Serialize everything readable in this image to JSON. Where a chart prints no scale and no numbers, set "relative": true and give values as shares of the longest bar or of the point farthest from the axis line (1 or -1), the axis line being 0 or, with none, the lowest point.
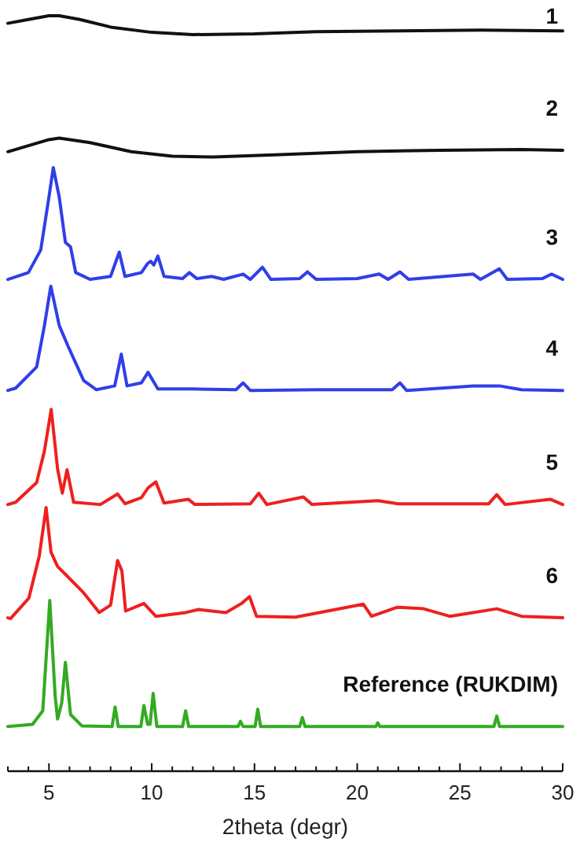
{
  "chart_data": {
    "type": "line",
    "relative": true,
    "xlabel": "2theta (degr)",
    "xlim": [
      3,
      30
    ],
    "xticks": [
      {
        "value": 3,
        "label": null
      },
      {
        "value": 4,
        "label": null
      },
      5,
      {
        "value": 6,
        "label": null
      },
      {
        "value": 7,
        "label": null
      },
      {
        "value": 8,
        "label": null
      },
      {
        "value": 9,
        "label": null
      },
      10,
      {
        "value": 11,
        "label": null
      },
      {
        "value": 12,
        "label": null
      },
      {
        "value": 13,
        "label": null
      },
      {
        "value": 14,
        "label": null
      },
      15,
      {
        "value": 16,
        "label": null
      },
      {
        "value": 17,
        "label": null
      },
      {
        "value": 18,
        "label": null
      },
      {
        "value": 19,
        "label": null
      },
      20,
      {
        "value": 21,
        "label": null
      },
      {
        "value": 22,
        "label": null
      },
      {
        "value": 23,
        "label": null
      },
      {
        "value": 24,
        "label": null
      },
      25,
      {
        "value": 26,
        "label": null
      },
      {
        "value": 27,
        "label": null
      },
      {
        "value": 28,
        "label": null
      },
      {
        "value": 29,
        "label": null
      },
      30
    ],
    "grid": false,
    "marker": "none",
    "line_style": "solid",
    "series": [
      {
        "name": "1",
        "color": "#111111",
        "x": [
          3,
          4,
          5,
          5.5,
          6.5,
          8,
          10,
          12,
          15,
          18,
          22,
          26,
          30
        ],
        "values": [
          0.99,
          0.995,
          1.0,
          1.0,
          0.995,
          0.985,
          0.978,
          0.975,
          0.976,
          0.979,
          0.98,
          0.981,
          0.98
        ]
      },
      {
        "name": "2",
        "color": "#111111",
        "x": [
          3,
          4,
          5,
          5.5,
          7,
          9,
          11,
          13,
          16,
          20,
          24,
          28,
          30
        ],
        "values": [
          0.82,
          0.828,
          0.836,
          0.838,
          0.832,
          0.82,
          0.814,
          0.813,
          0.816,
          0.82,
          0.822,
          0.823,
          0.822
        ]
      },
      {
        "name": "3",
        "color": "#2f3fe8",
        "x": [
          3,
          4,
          4.6,
          5,
          5.21,
          5.5,
          5.8,
          6.05,
          6.3,
          7,
          8,
          8.42,
          8.7,
          9.5,
          9.8,
          9.95,
          10.1,
          10.3,
          10.6,
          11.5,
          11.83,
          12.2,
          12.92,
          13.5,
          14.45,
          14.8,
          15.39,
          15.8,
          17.2,
          17.58,
          18,
          20,
          21.07,
          21.5,
          22.08,
          22.5,
          25.65,
          26,
          26.92,
          27.3,
          29,
          29.46,
          30
        ],
        "values": [
          0.651,
          0.66,
          0.69,
          0.76,
          0.799,
          0.76,
          0.7,
          0.694,
          0.66,
          0.651,
          0.655,
          0.687,
          0.655,
          0.66,
          0.672,
          0.675,
          0.67,
          0.682,
          0.655,
          0.652,
          0.66,
          0.652,
          0.655,
          0.651,
          0.658,
          0.651,
          0.667,
          0.651,
          0.652,
          0.661,
          0.651,
          0.652,
          0.658,
          0.651,
          0.661,
          0.651,
          0.658,
          0.651,
          0.665,
          0.651,
          0.652,
          0.658,
          0.651
        ]
      },
      {
        "name": "4",
        "color": "#2f3fe8",
        "x": [
          3,
          3.38,
          4.4,
          4.78,
          5.09,
          5.5,
          5.93,
          6.69,
          7.3,
          8.2,
          8.52,
          8.8,
          9.5,
          9.82,
          10.3,
          12,
          14.1,
          14.45,
          14.8,
          18,
          21.7,
          22.08,
          22.4,
          25.65,
          26.92,
          28,
          30
        ],
        "values": [
          0.504,
          0.507,
          0.535,
          0.59,
          0.642,
          0.59,
          0.5625,
          0.517,
          0.505,
          0.51,
          0.552,
          0.51,
          0.514,
          0.528,
          0.506,
          0.506,
          0.505,
          0.514,
          0.504,
          0.505,
          0.505,
          0.514,
          0.504,
          0.51,
          0.51,
          0.505,
          0.504
        ]
      },
      {
        "name": "5",
        "color": "#ee2020",
        "x": [
          3,
          3.38,
          4.4,
          4.78,
          5.11,
          5.42,
          5.65,
          5.88,
          6.2,
          7.5,
          8.34,
          8.7,
          9.5,
          9.82,
          10.2,
          10.6,
          11.78,
          12.1,
          14.8,
          15.21,
          15.6,
          17.38,
          17.8,
          21.0,
          22,
          26.4,
          26.79,
          27.2,
          29.39,
          30
        ],
        "values": [
          0.353,
          0.356,
          0.382,
          0.424,
          0.479,
          0.4,
          0.368,
          0.399,
          0.356,
          0.353,
          0.367,
          0.354,
          0.362,
          0.375,
          0.383,
          0.355,
          0.36,
          0.353,
          0.354,
          0.368,
          0.353,
          0.363,
          0.353,
          0.358,
          0.354,
          0.354,
          0.366,
          0.353,
          0.36,
          0.353
        ]
      },
      {
        "name": "6",
        "color": "#ee2020",
        "x": [
          3,
          3.13,
          4.02,
          4.53,
          4.86,
          5.1,
          5.42,
          5.93,
          6.69,
          7.45,
          8.0,
          8.34,
          8.55,
          8.73,
          9.62,
          10.2,
          11.65,
          12.29,
          13.61,
          14.37,
          14.76,
          15.1,
          17,
          20.3,
          20.7,
          21.95,
          23.23,
          24.5,
          26.79,
          28,
          30
        ],
        "values": [
          0.203,
          0.202,
          0.229,
          0.285,
          0.349,
          0.29,
          0.271,
          0.257,
          0.236,
          0.21,
          0.22,
          0.279,
          0.265,
          0.212,
          0.222,
          0.205,
          0.21,
          0.214,
          0.21,
          0.222,
          0.231,
          0.205,
          0.204,
          0.221,
          0.205,
          0.217,
          0.215,
          0.205,
          0.215,
          0.205,
          0.203
        ]
      },
      {
        "name": "Reference (RUKDIM)",
        "color": "#33aa22",
        "x": [
          3,
          4.2,
          4.7,
          5.04,
          5.3,
          5.42,
          5.62,
          5.8,
          6.05,
          6.6,
          8.07,
          8.22,
          8.37,
          9.47,
          9.62,
          9.8,
          9.92,
          10.07,
          10.25,
          11.5,
          11.65,
          11.8,
          14.2,
          14.32,
          14.45,
          15.03,
          15.16,
          15.3,
          17.2,
          17.33,
          17.46,
          20.9,
          21.0,
          21.1,
          26.65,
          26.79,
          26.93,
          30
        ],
        "values": [
          0.059,
          0.062,
          0.08,
          0.226,
          0.1,
          0.069,
          0.09,
          0.144,
          0.075,
          0.06,
          0.059,
          0.085,
          0.059,
          0.059,
          0.087,
          0.062,
          0.062,
          0.103,
          0.059,
          0.059,
          0.08,
          0.059,
          0.059,
          0.066,
          0.059,
          0.059,
          0.082,
          0.059,
          0.059,
          0.071,
          0.059,
          0.059,
          0.064,
          0.059,
          0.059,
          0.073,
          0.059,
          0.059
        ]
      }
    ]
  }
}
